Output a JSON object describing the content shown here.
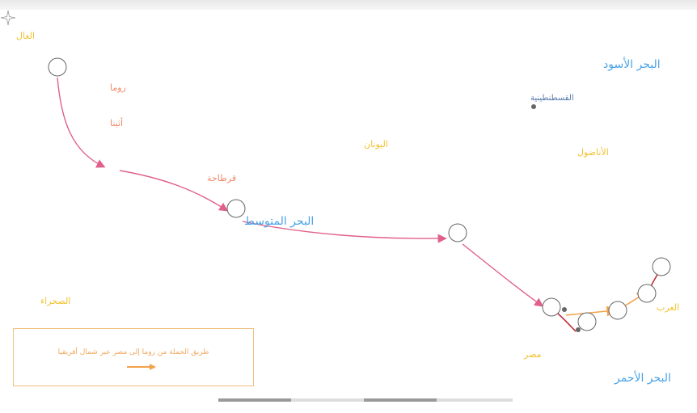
{
  "map": {
    "seas": [
      {
        "id": "black-sea",
        "label": "البحر الأسود"
      },
      {
        "id": "mediterranean",
        "label": "البحر المتوسط"
      },
      {
        "id": "red-sea",
        "label": "البحر الأحمر"
      }
    ],
    "cities": [
      {
        "id": "rome",
        "label": "روما"
      },
      {
        "id": "carthage",
        "label": "قرطاجة"
      },
      {
        "id": "constantinople",
        "label": "القسطنطينية"
      },
      {
        "id": "athens",
        "label": "أثينا"
      }
    ],
    "regions": [
      {
        "id": "gaul",
        "label": "الغال"
      },
      {
        "id": "greece",
        "label": "اليونان"
      },
      {
        "id": "anatolia",
        "label": "الأناضول"
      },
      {
        "id": "sahara",
        "label": "الصحراء"
      },
      {
        "id": "egypt",
        "label": "مصر"
      },
      {
        "id": "arabia",
        "label": "العرب"
      }
    ],
    "legend": {
      "text": "طريق الحملة من روما إلى مصر عبر شمال أفريقيا",
      "arrow_color": "#f3a24a"
    },
    "colors": {
      "route_main": "#e0608a",
      "route_secondary": "#f3a24a",
      "sea_label": "#4aa3e6",
      "region_label": "#f2c230",
      "city_label": "#f08a6a",
      "legend_border": "#f0c080"
    },
    "icons": [
      "compass-icon",
      "scale-bar"
    ]
  }
}
